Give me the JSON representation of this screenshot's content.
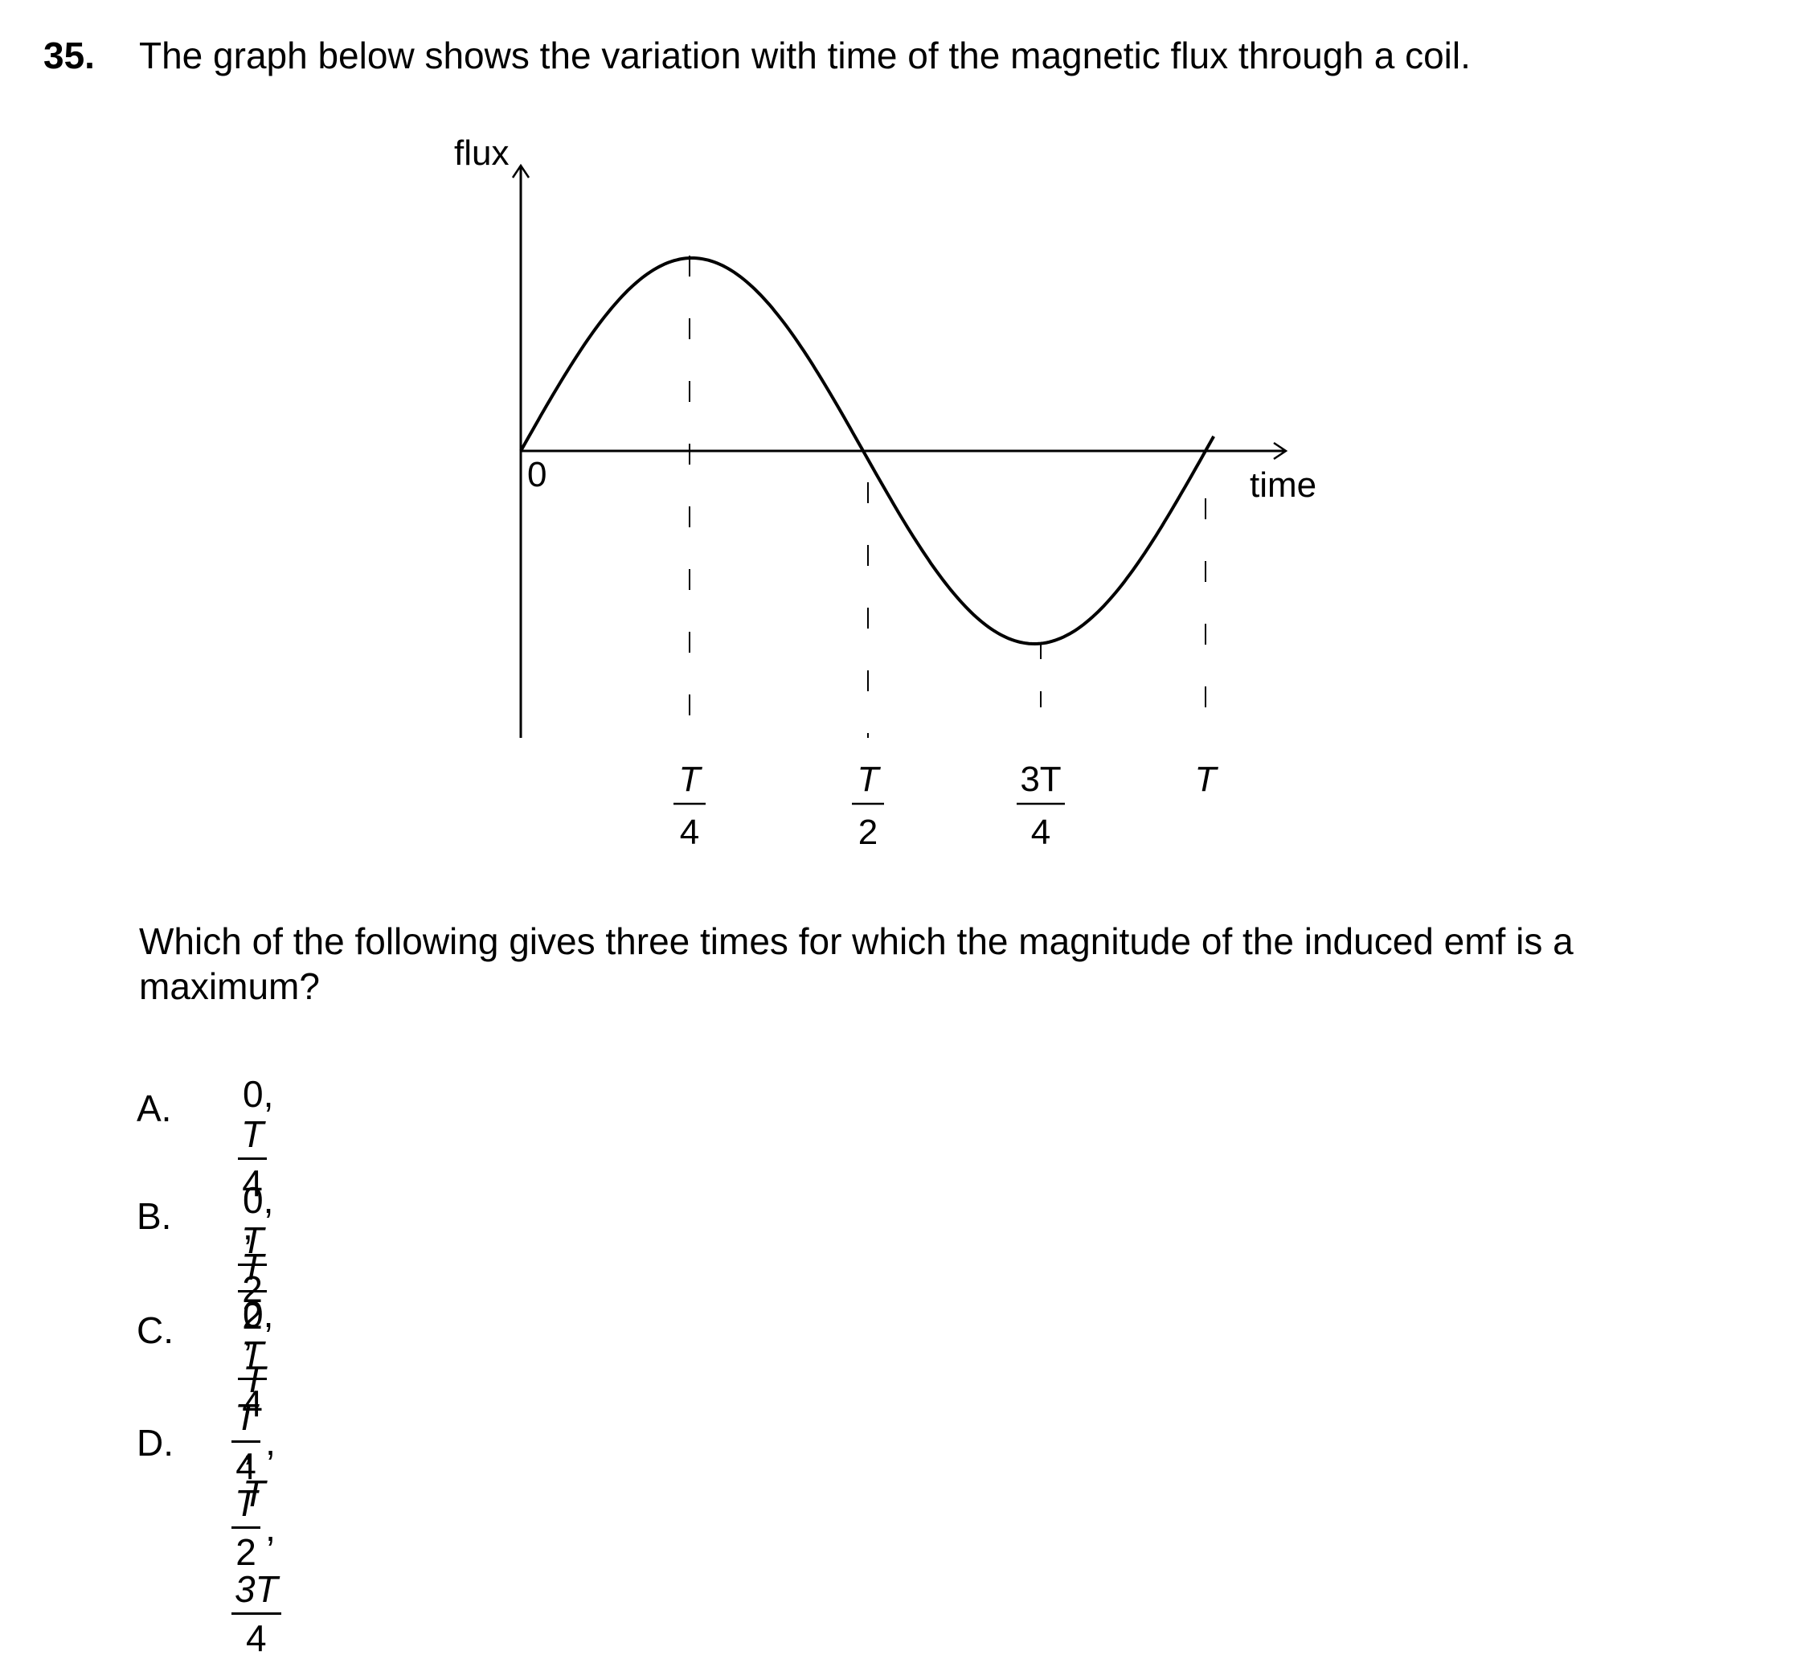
{
  "question": {
    "number": "35.",
    "stem": "The graph below shows the variation with time of the magnetic flux through a coil.",
    "prompt": "Which of the following gives three times for which the magnitude of the induced emf is a maximum?"
  },
  "graph": {
    "y_axis_label": "flux",
    "x_axis_label": "time",
    "origin_label": "0",
    "ticks": [
      {
        "numerator": "T",
        "denominator": "4"
      },
      {
        "numerator": "T",
        "denominator": "2"
      },
      {
        "numerator": "3T",
        "denominator": "4"
      },
      {
        "numerator": "T",
        "denominator": ""
      }
    ]
  },
  "chart_data": {
    "type": "line",
    "title": "",
    "xlabel": "time",
    "ylabel": "flux",
    "x_ticks": [
      "0",
      "T/4",
      "T/2",
      "3T/4",
      "T"
    ],
    "series": [
      {
        "x": [
          "0",
          "T/4",
          "T/2",
          "3T/4",
          "T"
        ],
        "y": [
          0,
          1,
          0,
          -1,
          0
        ]
      }
    ],
    "grid": false
  },
  "options": [
    {
      "letter": "A.",
      "first": "0,",
      "terms": [
        {
          "num": "T",
          "den": "4"
        },
        {
          "num": "T",
          "den": "2"
        }
      ]
    },
    {
      "letter": "B.",
      "first": "0,",
      "terms": [
        {
          "num": "T",
          "den": "2"
        }
      ],
      "last": "T"
    },
    {
      "letter": "C.",
      "first": "0,",
      "terms": [
        {
          "num": "T",
          "den": "4"
        }
      ],
      "last": "T"
    },
    {
      "letter": "D.",
      "first": "",
      "terms": [
        {
          "num": "T",
          "den": "4"
        },
        {
          "num": "T",
          "den": "2"
        },
        {
          "num": "3T",
          "den": "4"
        }
      ]
    }
  ]
}
